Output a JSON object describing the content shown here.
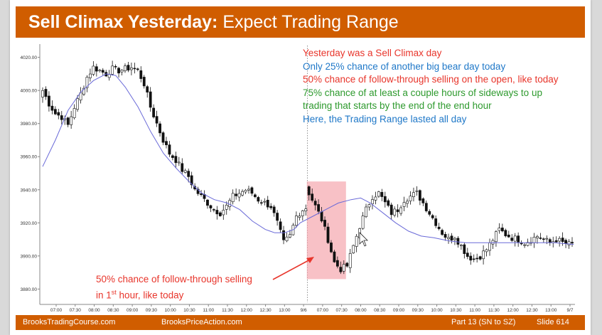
{
  "title": {
    "bold": "Sell Climax Yesterday:",
    "rest": "Expect Trading Range"
  },
  "annotations": [
    {
      "text": "Yesterday was a Sell Climax day",
      "color": "#e8352b"
    },
    {
      "text": "Only 25% chance of another big bear day today",
      "color": "#1f78c8"
    },
    {
      "text": "50% chance of follow-through selling on the open, like today",
      "color": "#e8352b"
    },
    {
      "text": "75% chance of at least a couple hours of sideways to up",
      "color": "#2e9a2e"
    },
    {
      "text": "trading that starts by the end of the end hour",
      "color": "#2e9a2e"
    },
    {
      "text": "Here, the Trading Range lasted all day",
      "color": "#1f78c8"
    }
  ],
  "bottom_note": {
    "line1": "50% chance of follow-through selling",
    "line2_prefix": "in 1",
    "line2_sup": "st",
    "line2_suffix": " hour, like today"
  },
  "footer": {
    "left": "BrooksTradingCourse.com",
    "center": "BrooksPriceAction.com",
    "part": "Part 13 (SN to SZ)",
    "slide": "Slide  614"
  },
  "chart_data": {
    "type": "candlestick",
    "y_ticks": [
      "3880.00",
      "3900.00",
      "3920.00",
      "3940.00",
      "3960.00",
      "3980.00",
      "4000.00",
      "4020.00"
    ],
    "ylim": [
      3872,
      4028
    ],
    "x_ticks": [
      "07:00",
      "07:30",
      "08:00",
      "08:30",
      "09:00",
      "09:30",
      "10:00",
      "10:30",
      "11:00",
      "11:30",
      "12:00",
      "12:30",
      "13:00",
      "9/6",
      "07:00",
      "07:30",
      "08:00",
      "08:30",
      "09:00",
      "09:30",
      "10:00",
      "10:30",
      "11:00",
      "11:30",
      "12:00",
      "12:30",
      "13:00",
      "9/7"
    ],
    "close_path": [
      [
        0,
        4000
      ],
      [
        2,
        3992
      ],
      [
        4,
        3986
      ],
      [
        6,
        3984
      ],
      [
        8,
        3979
      ],
      [
        10,
        3990
      ],
      [
        12,
        3998
      ],
      [
        14,
        4008
      ],
      [
        16,
        4014
      ],
      [
        18,
        4012
      ],
      [
        20,
        4010
      ],
      [
        22,
        4013
      ],
      [
        24,
        4012
      ],
      [
        26,
        4013
      ],
      [
        28,
        4014
      ],
      [
        30,
        4012
      ],
      [
        32,
        4004
      ],
      [
        34,
        3990
      ],
      [
        36,
        3980
      ],
      [
        38,
        3970
      ],
      [
        40,
        3962
      ],
      [
        42,
        3958
      ],
      [
        44,
        3952
      ],
      [
        46,
        3948
      ],
      [
        48,
        3940
      ],
      [
        50,
        3936
      ],
      [
        52,
        3932
      ],
      [
        54,
        3928
      ],
      [
        56,
        3926
      ],
      [
        58,
        3930
      ],
      [
        60,
        3936
      ],
      [
        62,
        3938
      ],
      [
        64,
        3940
      ],
      [
        66,
        3938
      ],
      [
        68,
        3934
      ],
      [
        70,
        3932
      ],
      [
        72,
        3930
      ],
      [
        74,
        3920
      ],
      [
        76,
        3908
      ],
      [
        78,
        3912
      ],
      [
        80,
        3924
      ],
      [
        82,
        3928
      ],
      [
        83,
        3929
      ],
      [
        84,
        3938
      ],
      [
        86,
        3930
      ],
      [
        88,
        3922
      ],
      [
        90,
        3910
      ],
      [
        92,
        3896
      ],
      [
        94,
        3892
      ],
      [
        96,
        3894
      ],
      [
        98,
        3906
      ],
      [
        100,
        3918
      ],
      [
        102,
        3928
      ],
      [
        104,
        3936
      ],
      [
        106,
        3938
      ],
      [
        108,
        3932
      ],
      [
        110,
        3926
      ],
      [
        112,
        3928
      ],
      [
        114,
        3934
      ],
      [
        116,
        3936
      ],
      [
        118,
        3938
      ],
      [
        120,
        3932
      ],
      [
        122,
        3926
      ],
      [
        124,
        3920
      ],
      [
        126,
        3914
      ],
      [
        128,
        3910
      ],
      [
        130,
        3912
      ],
      [
        132,
        3906
      ],
      [
        134,
        3900
      ],
      [
        136,
        3898
      ],
      [
        138,
        3900
      ],
      [
        140,
        3904
      ],
      [
        142,
        3910
      ],
      [
        144,
        3916
      ],
      [
        146,
        3913
      ],
      [
        148,
        3911
      ],
      [
        150,
        3910
      ],
      [
        152,
        3908
      ],
      [
        154,
        3910
      ],
      [
        156,
        3912
      ],
      [
        158,
        3910
      ],
      [
        160,
        3908
      ],
      [
        162,
        3910
      ],
      [
        164,
        3908
      ],
      [
        166,
        3907
      ]
    ],
    "ema_path": [
      [
        0,
        3954
      ],
      [
        8,
        3970
      ],
      [
        16,
        3988
      ],
      [
        24,
        3999
      ],
      [
        32,
        4006
      ],
      [
        40,
        4010
      ],
      [
        46,
        4009
      ],
      [
        52,
        4002
      ],
      [
        60,
        3990
      ],
      [
        68,
        3975
      ],
      [
        76,
        3962
      ],
      [
        84,
        3953
      ],
      [
        92,
        3945
      ],
      [
        100,
        3938
      ],
      [
        108,
        3934
      ],
      [
        116,
        3932
      ],
      [
        124,
        3928
      ],
      [
        132,
        3921
      ],
      [
        140,
        3916
      ],
      [
        146,
        3914
      ],
      [
        152,
        3914
      ],
      [
        158,
        3916
      ],
      [
        162,
        3920
      ],
      [
        170,
        3924
      ],
      [
        178,
        3928
      ],
      [
        186,
        3932
      ],
      [
        194,
        3934
      ],
      [
        200,
        3935
      ],
      [
        206,
        3932
      ],
      [
        214,
        3926
      ],
      [
        222,
        3920
      ],
      [
        230,
        3915
      ],
      [
        238,
        3912
      ],
      [
        246,
        3911
      ],
      [
        256,
        3909
      ],
      [
        266,
        3908
      ],
      [
        276,
        3908
      ],
      [
        286,
        3908
      ],
      [
        298,
        3908
      ],
      [
        310,
        3908
      ],
      [
        322,
        3908
      ],
      [
        334,
        3907
      ]
    ]
  }
}
